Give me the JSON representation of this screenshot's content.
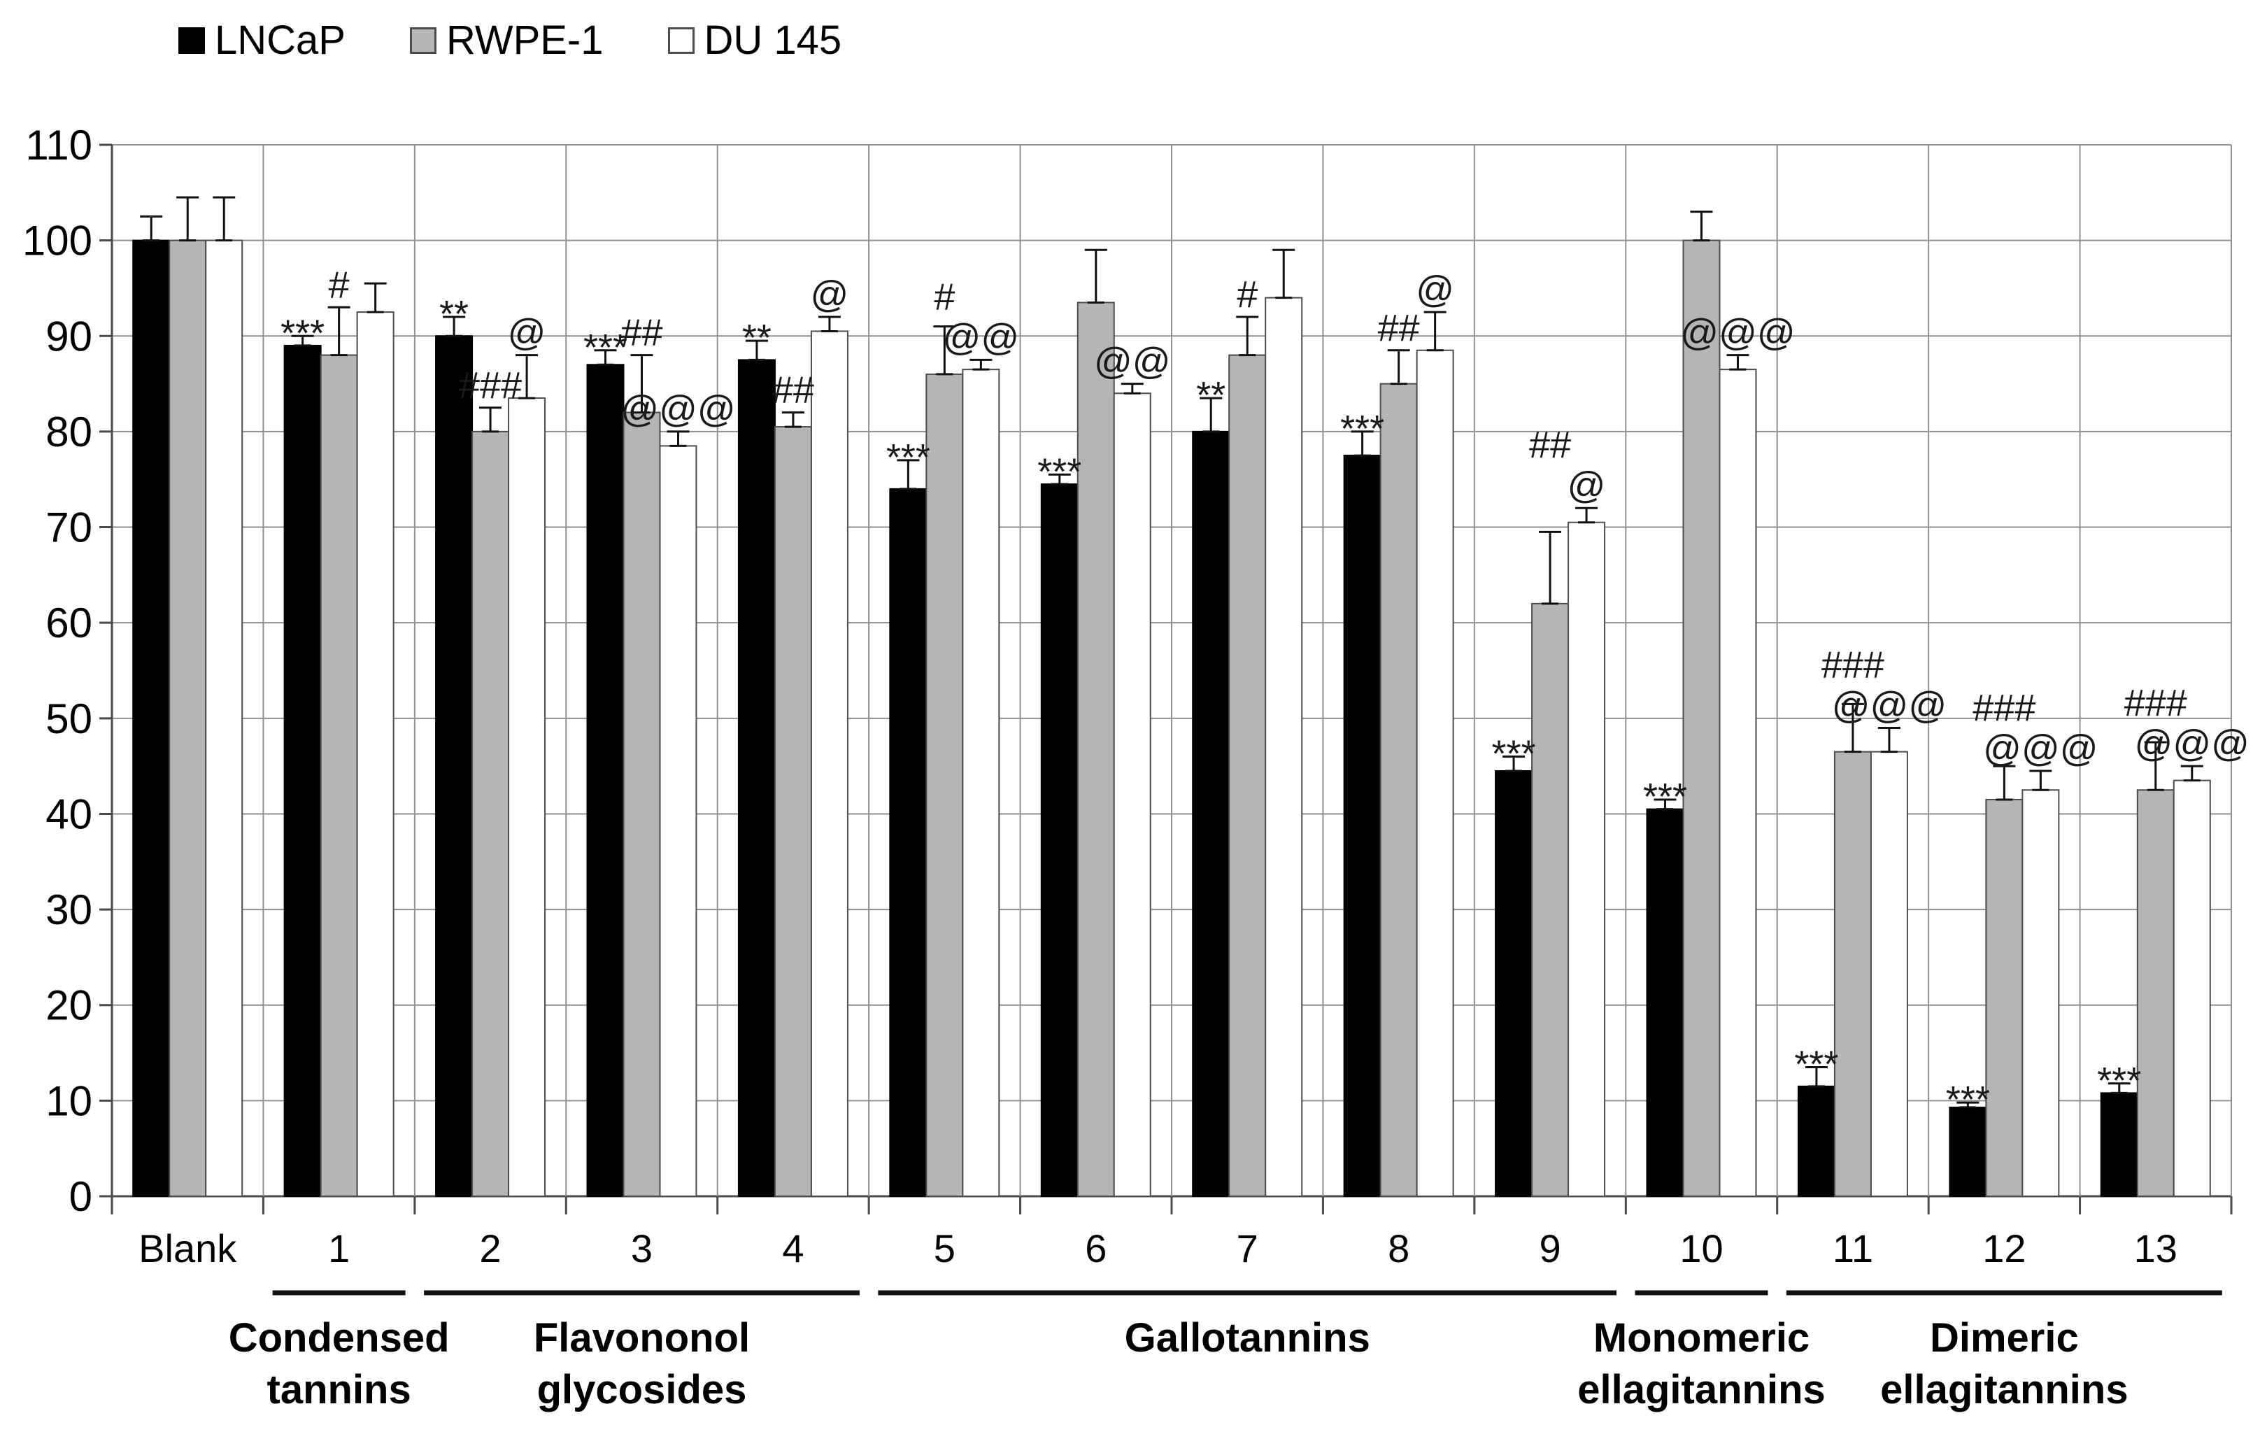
{
  "chart_data": {
    "type": "bar",
    "title": "",
    "legend_position": "top-left",
    "grid": "horizontal gridlines with vertical category separators",
    "y_axis": {
      "min": 0,
      "max": 110,
      "step": 10,
      "ticks": [
        0,
        10,
        20,
        30,
        40,
        50,
        60,
        70,
        80,
        90,
        100,
        110
      ]
    },
    "categories": [
      "Blank",
      "1",
      "2",
      "3",
      "4",
      "5",
      "6",
      "7",
      "8",
      "9",
      "10",
      "11",
      "12",
      "13"
    ],
    "series": [
      {
        "name": "LNCaP",
        "color": "#000000",
        "border": "#000000",
        "swatch_border": "#000000",
        "values": [
          100,
          89,
          90,
          87,
          87.5,
          74,
          74.5,
          80,
          77.5,
          44.5,
          40.5,
          11.5,
          9.3,
          10.8
        ],
        "err_top": [
          102.5,
          90,
          92,
          88.5,
          89.5,
          77,
          75.5,
          83.5,
          80,
          46,
          41.5,
          13.5,
          9.8,
          11.8
        ],
        "sig": [
          "",
          "***",
          "**",
          "***",
          "**",
          "***",
          "***",
          "**",
          "***",
          "***",
          "***",
          "***",
          "***",
          "***"
        ]
      },
      {
        "name": "RWPE-1",
        "color": "#b5b5b5",
        "border": "#4d4d4d",
        "swatch_border": "#4d4d4d",
        "values": [
          100,
          88,
          80,
          82,
          80.5,
          86,
          93.5,
          88,
          85,
          62,
          100,
          46.5,
          41.5,
          42.5
        ],
        "err_top": [
          104.5,
          93,
          82.5,
          88,
          82,
          91,
          99,
          92,
          88.5,
          69.5,
          103,
          51.5,
          45,
          47.5
        ],
        "sig": [
          "",
          "#",
          "###",
          "##",
          "##",
          "#",
          "",
          "#",
          "##",
          "##",
          "",
          "###",
          "###",
          "###"
        ]
      },
      {
        "name": "DU 145",
        "color": "#ffffff",
        "border": "#4d4d4d",
        "swatch_border": "#4d4d4d",
        "values": [
          100,
          92.5,
          83.5,
          78.5,
          90.5,
          86.5,
          84,
          94,
          88.5,
          70.5,
          86.5,
          46.5,
          42.5,
          43.5
        ],
        "err_top": [
          104.5,
          95.5,
          88,
          80,
          92,
          87.5,
          85,
          99,
          92.5,
          72,
          88,
          49,
          44.5,
          45
        ],
        "sig": [
          "",
          "",
          "@",
          "@@@",
          "@",
          "@@",
          "@@",
          "",
          "@",
          "@",
          "@@@",
          "@@@",
          "@@@",
          "@@@"
        ]
      }
    ],
    "groups": [
      {
        "label": "Condensed tannins",
        "lines": [
          "Condensed",
          "tannins"
        ],
        "from": 1,
        "to": 1
      },
      {
        "label": "Flavononol glycosides",
        "lines": [
          "Flavononol",
          "glycosides"
        ],
        "from": 2,
        "to": 4
      },
      {
        "label": "Gallotannins",
        "lines": [
          "Gallotannins"
        ],
        "from": 5,
        "to": 9
      },
      {
        "label": "Monomeric ellagitannins",
        "lines": [
          "Monomeric",
          "ellagitannins"
        ],
        "from": 10,
        "to": 10
      },
      {
        "label": "Dimeric ellagitannins",
        "lines": [
          "Dimeric",
          "ellagitannins"
        ],
        "from": 11,
        "to": 13
      }
    ],
    "colors": {
      "gridline": "#909090",
      "axis": "#4a4a4a",
      "error_bar": "#111111",
      "annotation": "#1a1a1a",
      "group_underline": "#111111"
    }
  }
}
